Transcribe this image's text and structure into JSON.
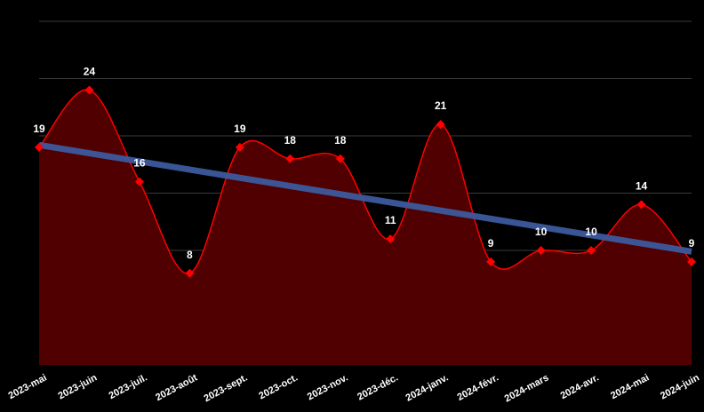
{
  "chart_data": {
    "type": "area",
    "categories": [
      "2023-mai",
      "2023-juin",
      "2023-juil.",
      "2023-août",
      "2023-sept.",
      "2023-oct.",
      "2023-nov.",
      "2023-déc.",
      "2024-janv.",
      "2024-févr.",
      "2024-mars",
      "2024-avr.",
      "2024-mai",
      "2024-juin"
    ],
    "series": [
      {
        "values": [
          19,
          24,
          16,
          8,
          19,
          18,
          18,
          11,
          21,
          9,
          10,
          10,
          14,
          9
        ],
        "color": "#ff0000",
        "fill": "#500000"
      }
    ],
    "trendline": {
      "start": 19.2,
      "end": 9.9,
      "color": "#3d5a9e"
    },
    "ylim": [
      0,
      30
    ],
    "grid": true,
    "legend": "none",
    "colors": {
      "background": "#000000",
      "grid": "#3a3a3a",
      "text": "#ffffff"
    }
  }
}
